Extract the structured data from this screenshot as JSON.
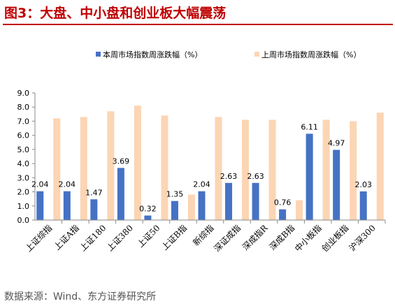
{
  "title": "图3：大盘、中小盘和创业板大幅震荡",
  "source": "数据来源：Wind、东方证券研究所",
  "colors": {
    "this_week": "#4572c4",
    "last_week": "#fcd5b4",
    "title": "#c00000"
  },
  "chart_data": {
    "type": "bar",
    "categories": [
      "上证综指",
      "上证A指",
      "上证180",
      "上证380",
      "上证50",
      "上证B指",
      "新综指",
      "深证成指",
      "深成指R",
      "深成B指",
      "中小板指",
      "创业板指",
      "沪深300"
    ],
    "series": [
      {
        "name": "本周市场指数周涨跌幅（%）",
        "values": [
          2.04,
          2.04,
          1.47,
          3.69,
          0.32,
          1.35,
          2.04,
          2.63,
          2.63,
          0.76,
          6.11,
          4.97,
          2.03
        ],
        "labels": [
          "2.04",
          "2.04",
          "1.47",
          "3.69",
          "0.32",
          "1.35",
          "2.04",
          "2.63",
          "2.63",
          "0.76",
          "6.11",
          "4.97",
          "2.03"
        ]
      },
      {
        "name": "上周市场指数周涨跌幅（%）",
        "values": [
          7.2,
          7.3,
          7.7,
          8.1,
          7.4,
          1.8,
          7.3,
          7.1,
          7.1,
          1.4,
          7.1,
          7.0,
          7.6
        ]
      }
    ],
    "ylim": [
      0,
      9
    ],
    "yticks": [
      "0.0",
      "1.0",
      "2.0",
      "3.0",
      "4.0",
      "5.0",
      "6.0",
      "7.0",
      "8.0",
      "9.0"
    ],
    "legend_position": "top",
    "grid": false
  }
}
